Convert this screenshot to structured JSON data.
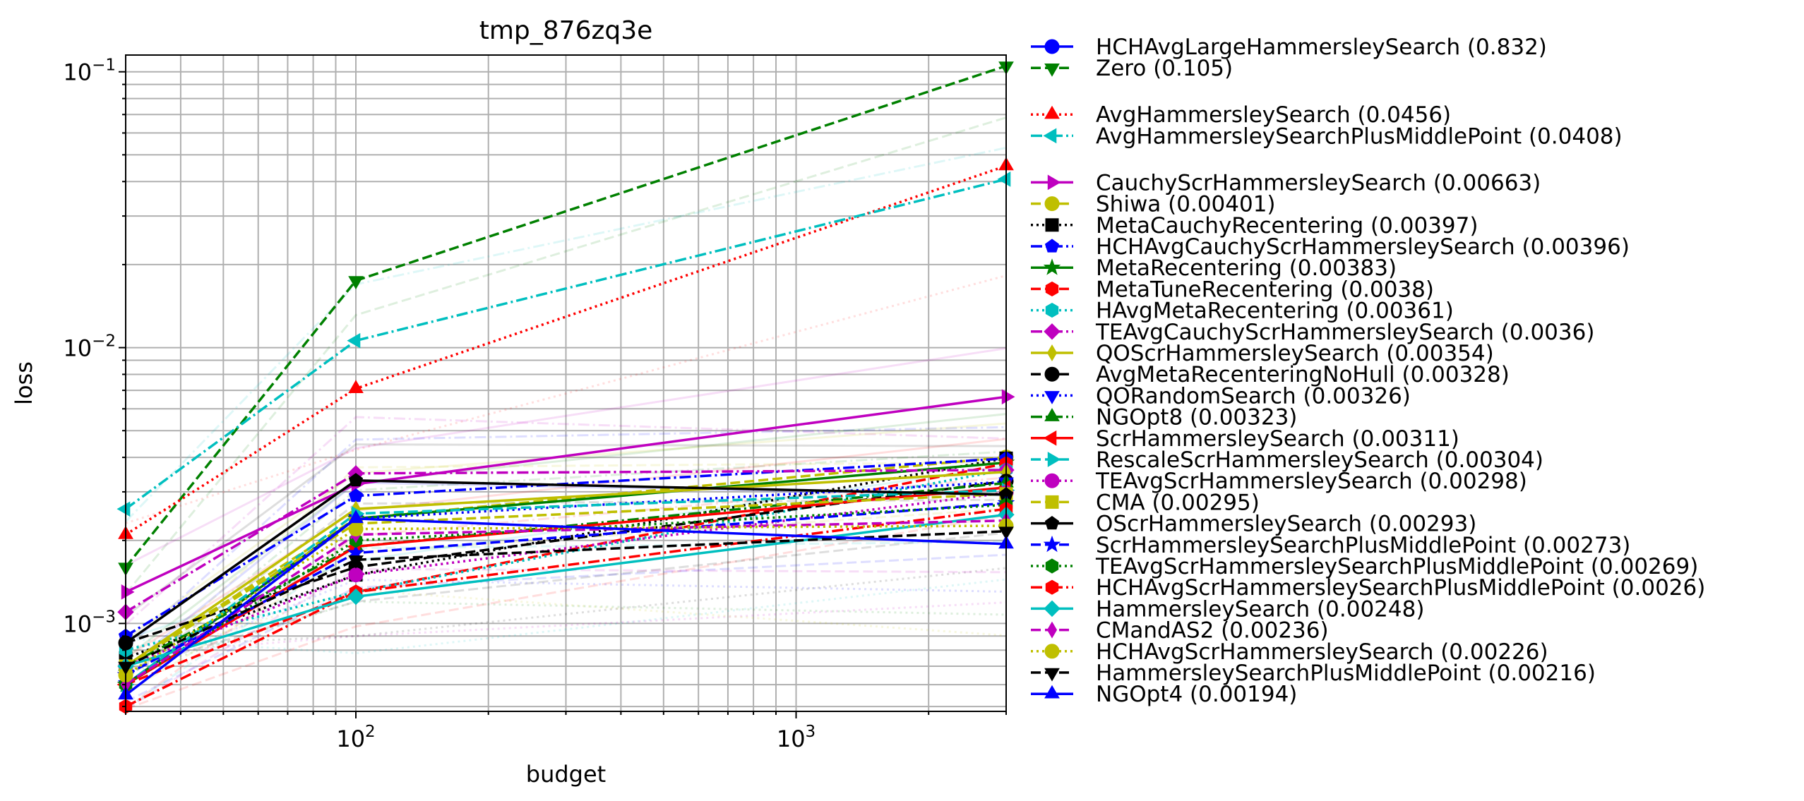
{
  "chart_data": {
    "type": "line",
    "title": "tmp_876zq3e",
    "xlabel": "budget",
    "ylabel": "loss",
    "xscale": "log",
    "yscale": "log",
    "xlim": [
      30,
      3000
    ],
    "ylim": [
      0.00048,
      0.115
    ],
    "grid": true,
    "legend_position": "outside right",
    "x_ticks": [
      {
        "value": 100,
        "base": "10",
        "exp": "2"
      },
      {
        "value": 1000,
        "base": "10",
        "exp": "3"
      }
    ],
    "y_ticks": [
      {
        "value": 0.001,
        "base": "10",
        "exp": "−3"
      },
      {
        "value": 0.01,
        "base": "10",
        "exp": "−2"
      },
      {
        "value": 0.1,
        "base": "10",
        "exp": "−1"
      }
    ],
    "x": [
      30,
      100,
      3000
    ],
    "series": [
      {
        "name": "HCHAvgLargeHammersleySearch (0.832)",
        "color": "#0000ff",
        "dash": "solid",
        "marker": "circle",
        "values": [
          null,
          null,
          null
        ]
      },
      {
        "name": "Zero (0.105)",
        "color": "#008000",
        "dash": "dashed",
        "marker": "tri_down",
        "values": [
          0.0016,
          0.0175,
          0.105
        ]
      },
      {
        "name": "AvgHammersleySearch (0.0456)",
        "color": "#ff0000",
        "dash": "dotted",
        "marker": "tri_up",
        "values": [
          0.0021,
          0.0071,
          0.0456
        ]
      },
      {
        "name": "AvgHammersleySearchPlusMiddlePoint (0.0408)",
        "color": "#00bfbf",
        "dash": "dashdot",
        "marker": "tri_left",
        "values": [
          0.0026,
          0.0106,
          0.0408
        ]
      },
      {
        "name": "CauchyScrHammersleySearch (0.00663)",
        "color": "#bf00bf",
        "dash": "solid",
        "marker": "tri_right",
        "values": [
          0.0013,
          0.0032,
          0.00663
        ]
      },
      {
        "name": "Shiwa (0.00401)",
        "color": "#bfbf00",
        "dash": "dashed",
        "marker": "circle",
        "values": [
          0.0007,
          0.0024,
          0.00401
        ]
      },
      {
        "name": "MetaCauchyRecentering (0.00397)",
        "color": "#000000",
        "dash": "dotted",
        "marker": "square",
        "values": [
          0.00075,
          0.0015,
          0.00397
        ]
      },
      {
        "name": "HCHAvgCauchyScrHammersleySearch (0.00396)",
        "color": "#0000ff",
        "dash": "dashdot",
        "marker": "pentagon",
        "values": [
          0.0009,
          0.0029,
          0.00396
        ]
      },
      {
        "name": "MetaRecentering (0.00383)",
        "color": "#008000",
        "dash": "solid",
        "marker": "star",
        "values": [
          0.0006,
          0.0024,
          0.00383
        ]
      },
      {
        "name": "MetaTuneRecentering (0.0038)",
        "color": "#ff0000",
        "dash": "dashed",
        "marker": "hexagon",
        "values": [
          0.0006,
          0.0013,
          0.0038
        ]
      },
      {
        "name": "HAvgMetaRecentering (0.00361)",
        "color": "#00bfbf",
        "dash": "dotted",
        "marker": "hexagon",
        "values": [
          0.0008,
          0.0013,
          0.00361
        ]
      },
      {
        "name": "TEAvgCauchyScrHammersleySearch (0.0036)",
        "color": "#bf00bf",
        "dash": "dashdot",
        "marker": "diamond",
        "values": [
          0.0011,
          0.0035,
          0.0036
        ]
      },
      {
        "name": "QOScrHammersleySearch (0.00354)",
        "color": "#bfbf00",
        "dash": "solid",
        "marker": "thin_diamond",
        "values": [
          0.0007,
          0.0026,
          0.00354
        ]
      },
      {
        "name": "AvgMetaRecenteringNoHull (0.00328)",
        "color": "#000000",
        "dash": "dashed",
        "marker": "circle",
        "values": [
          0.00085,
          0.0016,
          0.00328
        ]
      },
      {
        "name": "QORandomSearch (0.00326)",
        "color": "#0000ff",
        "dash": "dotted",
        "marker": "tri_down",
        "values": [
          0.0006,
          0.0024,
          0.00326
        ]
      },
      {
        "name": "NGOpt8 (0.00323)",
        "color": "#008000",
        "dash": "dashdot",
        "marker": "tri_up",
        "values": [
          0.0007,
          0.0019,
          0.00323
        ]
      },
      {
        "name": "ScrHammersleySearch (0.00311)",
        "color": "#ff0000",
        "dash": "solid",
        "marker": "tri_left",
        "values": [
          0.0006,
          0.0019,
          0.00311
        ]
      },
      {
        "name": "RescaleScrHammersleySearch (0.00304)",
        "color": "#00bfbf",
        "dash": "dashed",
        "marker": "tri_right",
        "values": [
          0.0006,
          0.0025,
          0.00304
        ]
      },
      {
        "name": "TEAvgScrHammersleySearch (0.00298)",
        "color": "#bf00bf",
        "dash": "dotted",
        "marker": "circle",
        "values": [
          0.0007,
          0.0015,
          0.00298
        ]
      },
      {
        "name": "CMA (0.00295)",
        "color": "#bfbf00",
        "dash": "dashed",
        "marker": "square",
        "values": [
          0.0007,
          0.0023,
          0.00295
        ]
      },
      {
        "name": "OScrHammersleySearch (0.00293)",
        "color": "#000000",
        "dash": "solid",
        "marker": "pentagon",
        "values": [
          0.00085,
          0.0033,
          0.00293
        ]
      },
      {
        "name": "ScrHammersleySearchPlusMiddlePoint (0.00273)",
        "color": "#0000ff",
        "dash": "dashed",
        "marker": "star",
        "values": [
          0.00065,
          0.0018,
          0.00273
        ]
      },
      {
        "name": "TEAvgScrHammersleySearchPlusMiddlePoint (0.00269)",
        "color": "#008000",
        "dash": "dotted",
        "marker": "hexagon",
        "values": [
          0.0006,
          0.002,
          0.00269
        ]
      },
      {
        "name": "HCHAvgScrHammersleySearchPlusMiddlePoint (0.0026)",
        "color": "#ff0000",
        "dash": "dashdot",
        "marker": "hexagon",
        "values": [
          0.0005,
          0.0013,
          0.0026
        ]
      },
      {
        "name": "HammersleySearch (0.00248)",
        "color": "#00bfbf",
        "dash": "solid",
        "marker": "diamond",
        "values": [
          0.0007,
          0.00125,
          0.00248
        ]
      },
      {
        "name": "CMandAS2 (0.00236)",
        "color": "#bf00bf",
        "dash": "dashed",
        "marker": "thin_diamond",
        "values": [
          0.0006,
          0.0021,
          0.00236
        ]
      },
      {
        "name": "HCHAvgScrHammersleySearch (0.00226)",
        "color": "#bfbf00",
        "dash": "dotted",
        "marker": "circle",
        "values": [
          0.00065,
          0.0022,
          0.00226
        ]
      },
      {
        "name": "HammersleySearchPlusMiddlePoint (0.00216)",
        "color": "#000000",
        "dash": "dashed",
        "marker": "tri_down",
        "values": [
          0.0007,
          0.0017,
          0.00216
        ]
      },
      {
        "name": "NGOpt4 (0.00194)",
        "color": "#0000ff",
        "dash": "solid",
        "marker": "tri_up",
        "values": [
          0.00055,
          0.0024,
          0.00194
        ]
      }
    ],
    "legend_groups": [
      [
        0,
        1
      ],
      [
        2,
        3
      ],
      [
        4,
        5,
        6,
        7,
        8,
        9,
        10,
        11,
        12,
        13,
        14,
        15,
        16,
        17,
        18,
        19,
        20,
        21,
        22,
        23,
        24,
        25,
        26,
        27,
        28
      ]
    ]
  }
}
